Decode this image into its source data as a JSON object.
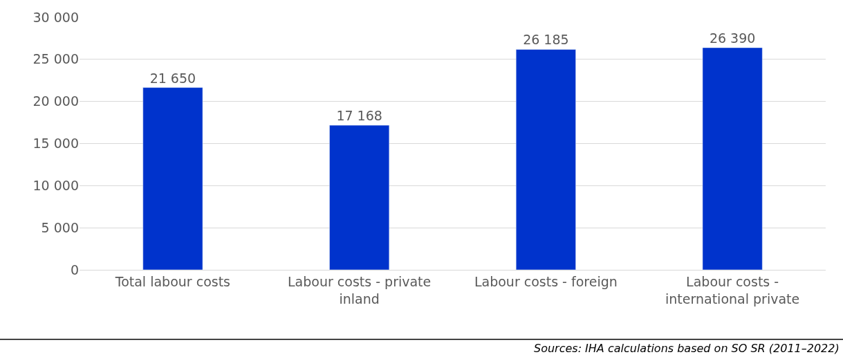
{
  "chart_data": {
    "type": "bar",
    "categories": [
      "Total labour costs",
      "Labour costs - private inland",
      "Labour costs - foreign",
      "Labour costs - international private"
    ],
    "values": [
      21650,
      17168,
      26185,
      26390
    ],
    "value_labels": [
      "21 650",
      "17 168",
      "26 185",
      "26 390"
    ],
    "color": "#0033cc",
    "ylim": [
      0,
      30000
    ],
    "yticks": [
      {
        "value": 0,
        "label": "0"
      },
      {
        "value": 5000,
        "label": "5 000"
      },
      {
        "value": 10000,
        "label": "10 000"
      },
      {
        "value": 15000,
        "label": "15 000"
      },
      {
        "value": 20000,
        "label": "20 000"
      },
      {
        "value": 25000,
        "label": "25 000"
      },
      {
        "value": 30000,
        "label": "30 000"
      }
    ],
    "grid": "y",
    "annotations": [
      "Sources: IHA calculations based on SO SR (2011–2022)"
    ]
  }
}
